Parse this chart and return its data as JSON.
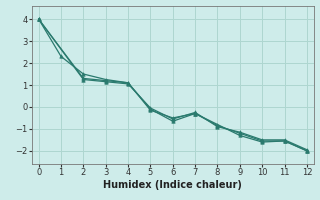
{
  "series": [
    {
      "x": [
        0,
        1,
        2,
        3,
        4,
        5,
        6,
        7,
        8,
        9,
        10,
        11,
        12
      ],
      "y": [
        4.0,
        2.3,
        1.5,
        1.25,
        1.1,
        -0.15,
        -0.5,
        -0.3,
        -0.8,
        -1.3,
        -1.6,
        -1.55,
        -2.0
      ]
    },
    {
      "x": [
        0,
        2,
        3,
        4,
        5,
        6,
        7,
        8,
        9,
        10,
        11,
        12
      ],
      "y": [
        4.0,
        1.3,
        1.2,
        1.1,
        -0.1,
        -0.65,
        -0.3,
        -0.85,
        -1.2,
        -1.55,
        -1.55,
        -2.0
      ]
    },
    {
      "x": [
        0,
        2,
        3,
        4,
        5,
        6,
        7,
        8,
        9,
        10,
        11,
        12
      ],
      "y": [
        4.0,
        1.25,
        1.15,
        1.05,
        -0.05,
        -0.55,
        -0.25,
        -0.9,
        -1.15,
        -1.5,
        -1.5,
        -1.95
      ]
    }
  ],
  "xlim": [
    -0.3,
    12.3
  ],
  "ylim": [
    -2.6,
    4.6
  ],
  "xticks": [
    0,
    1,
    2,
    3,
    4,
    5,
    6,
    7,
    8,
    9,
    10,
    11,
    12
  ],
  "yticks": [
    -2,
    -1,
    0,
    1,
    2,
    3,
    4
  ],
  "xlabel": "Humidex (Indice chaleur)",
  "bg_color": "#ceecea",
  "grid_color": "#aed6d0",
  "line_color": "#2a7a6e",
  "marker": "^",
  "markersize": 2.5,
  "linewidth": 0.9,
  "tick_fontsize": 6,
  "xlabel_fontsize": 7
}
